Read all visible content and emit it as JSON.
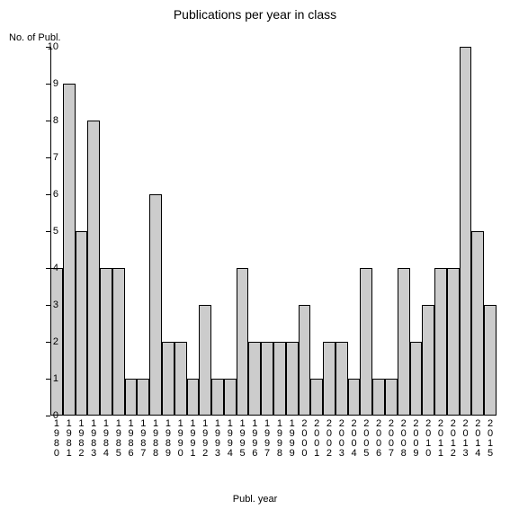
{
  "chart": {
    "type": "bar",
    "title": "Publications per year in class",
    "title_fontsize": 14,
    "xlabel": "Publ. year",
    "ylabel": "No. of Publ.",
    "label_fontsize": 11,
    "tick_fontsize": 11,
    "background_color": "#ffffff",
    "axis_color": "#000000",
    "bar_fill": "#cccccc",
    "bar_border": "#000000",
    "ylim": [
      0,
      10
    ],
    "ytick_step": 1,
    "bar_width": 1.0,
    "categories": [
      "1980",
      "1981",
      "1982",
      "1983",
      "1984",
      "1985",
      "1986",
      "1987",
      "1988",
      "1989",
      "1990",
      "1991",
      "1992",
      "1993",
      "1994",
      "1995",
      "1996",
      "1997",
      "1998",
      "1999",
      "2000",
      "2001",
      "2002",
      "2003",
      "2004",
      "2005",
      "2006",
      "2007",
      "2008",
      "2009",
      "2010",
      "2011",
      "2012",
      "2013",
      "2014",
      "2015"
    ],
    "values": [
      4,
      9,
      5,
      8,
      4,
      4,
      1,
      1,
      6,
      2,
      2,
      1,
      3,
      1,
      1,
      4,
      2,
      2,
      2,
      2,
      3,
      1,
      2,
      2,
      1,
      4,
      1,
      1,
      4,
      2,
      3,
      4,
      4,
      10,
      5,
      3
    ]
  }
}
